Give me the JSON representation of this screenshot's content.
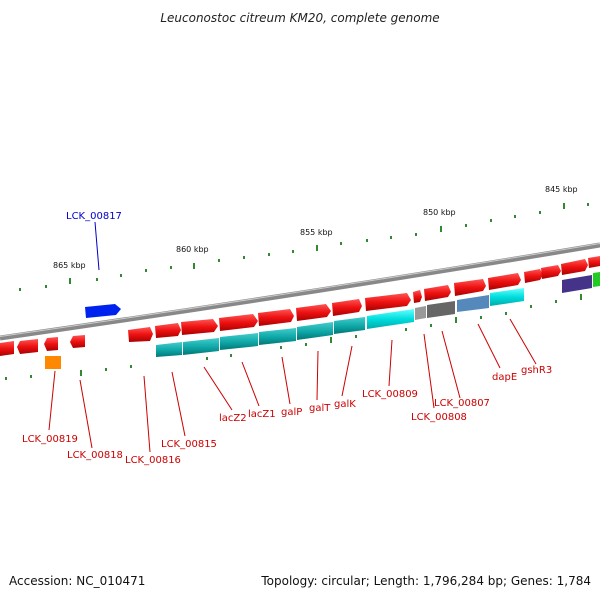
{
  "title": "Leuconostoc citreum KM20, complete genome",
  "footer": {
    "accession": "Accession: NC_010471",
    "topology": "Topology: circular; Length: 1,796,284 bp; Genes: 1,784"
  },
  "ticks": [
    "845 kbp",
    "850 kbp",
    "855 kbp",
    "860 kbp",
    "865 kbp"
  ],
  "labels": {
    "lck00817": "LCK_00817",
    "lck00819": "LCK_00819",
    "lck00818": "LCK_00818",
    "lck00816": "LCK_00816",
    "lck00815": "LCK_00815",
    "lacZ2": "lacZ2",
    "lacZ1": "lacZ1",
    "galP": "galP",
    "galT": "galT",
    "galK": "galK",
    "lck00809": "LCK_00809",
    "lck00807": "LCK_00807",
    "lck00808": "LCK_00808",
    "dapE": "dapE",
    "gshR3": "gshR3"
  },
  "colors": {
    "cds": "#ee1111",
    "cds_shade": "#aa0000",
    "blue_gene": "#0022ee",
    "cyan": "#00dddd",
    "teal": "#11aaaa",
    "gray": "#777777",
    "steel": "#5588bb",
    "navy": "#443388",
    "orange": "#ff8800",
    "green": "#22cc22",
    "tick": "#338833",
    "backbone": "#888888",
    "label": "#cc0000",
    "label_blue": "#0000cc"
  }
}
